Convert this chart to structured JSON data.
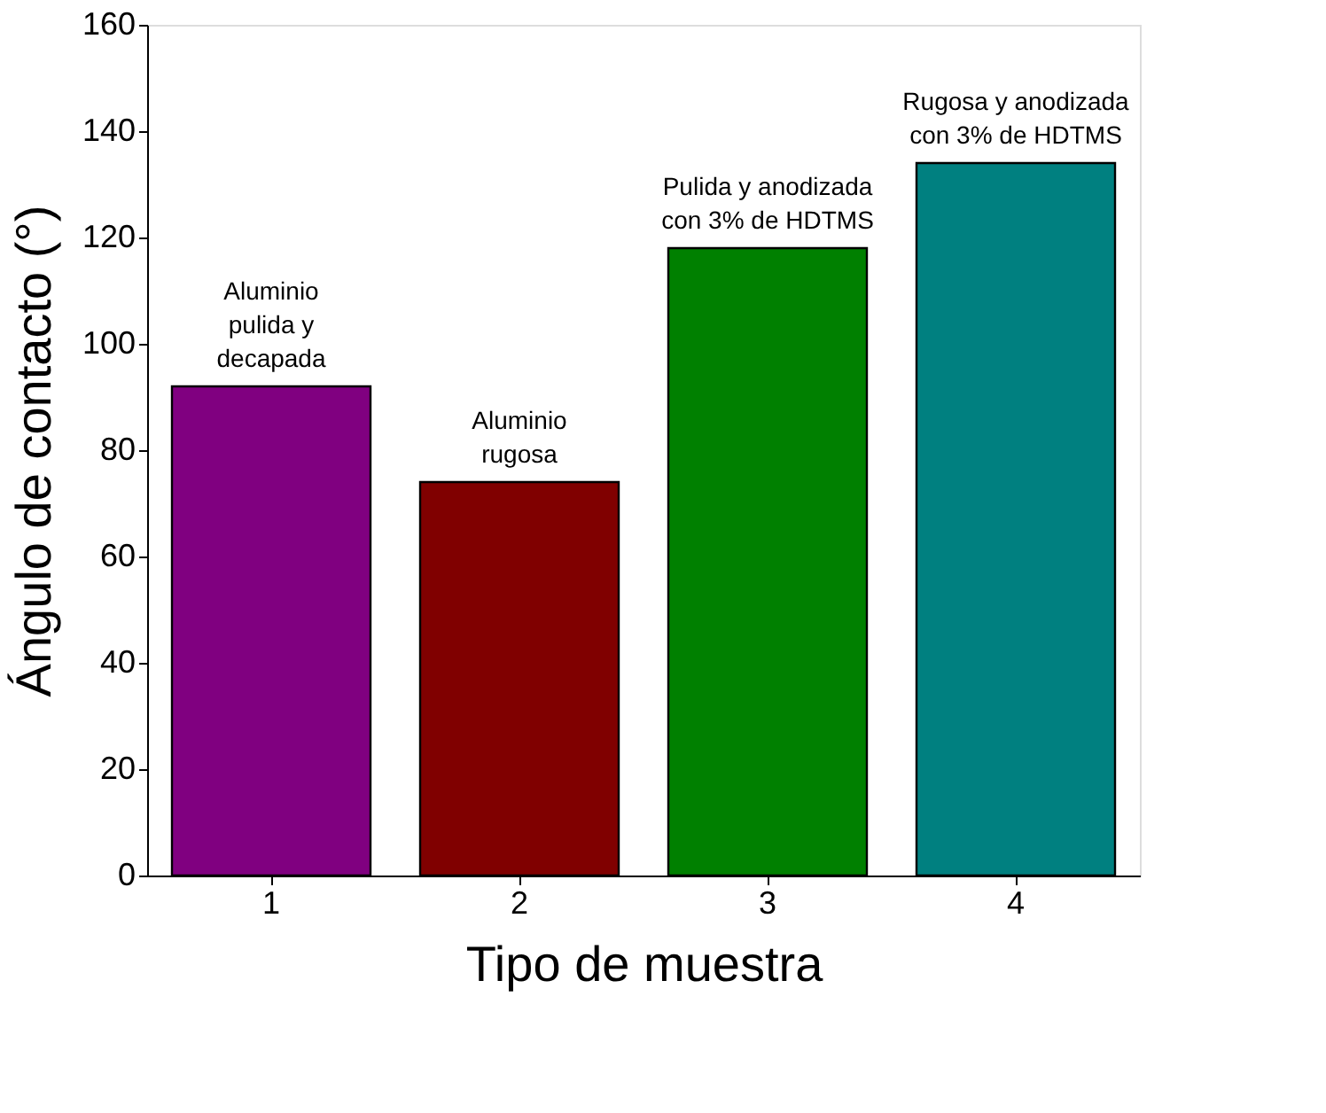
{
  "chart_data": {
    "type": "bar",
    "xlabel": "Tipo de muestra",
    "ylabel": "Ángulo de contacto (°)",
    "categories": [
      "1",
      "2",
      "3",
      "4"
    ],
    "values": [
      92,
      74,
      118,
      134
    ],
    "colors": [
      "#800080",
      "#800000",
      "#008000",
      "#008080"
    ],
    "ylim": [
      0,
      160
    ],
    "yticks": [
      0,
      20,
      40,
      60,
      80,
      100,
      120,
      140,
      160
    ],
    "grid": false,
    "annotations": [
      {
        "text": "Aluminio\npulida y\ndecapada",
        "x": "1",
        "y": 92
      },
      {
        "text": "Aluminio\nrugosa",
        "x": "2",
        "y": 74
      },
      {
        "text": "Pulida y anodizada\ncon 3% de HDTMS",
        "x": "3",
        "y": 118
      },
      {
        "text": "Rugosa y anodizada\ncon 3% de HDTMS",
        "x": "4",
        "y": 134
      }
    ]
  }
}
